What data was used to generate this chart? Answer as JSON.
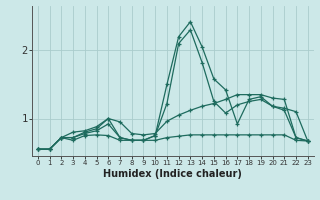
{
  "xlabel": "Humidex (Indice chaleur)",
  "x_labels": [
    "0",
    "1",
    "2",
    "3",
    "4",
    "5",
    "6",
    "7",
    "8",
    "9",
    "10",
    "11",
    "12",
    "13",
    "14",
    "15",
    "16",
    "17",
    "18",
    "19",
    "20",
    "21",
    "22",
    "23"
  ],
  "yticks": [
    1,
    2
  ],
  "ylim": [
    0.45,
    2.65
  ],
  "xlim": [
    -0.5,
    23.5
  ],
  "bg_color": "#cce8e8",
  "grid_color": "#aacccc",
  "line_color": "#1e6b5e",
  "series": [
    [
      0.55,
      0.55,
      0.72,
      0.72,
      0.8,
      0.85,
      1.0,
      0.72,
      0.68,
      0.68,
      0.75,
      1.5,
      2.2,
      2.42,
      2.05,
      1.58,
      1.42,
      0.92,
      1.28,
      1.32,
      1.18,
      1.15,
      1.1,
      0.67
    ],
    [
      0.55,
      0.55,
      0.72,
      0.72,
      0.78,
      0.82,
      0.92,
      0.72,
      0.68,
      0.68,
      0.75,
      1.22,
      2.1,
      2.3,
      1.82,
      1.25,
      1.08,
      1.2,
      1.25,
      1.28,
      1.18,
      1.12,
      0.72,
      0.67
    ],
    [
      0.55,
      0.55,
      0.72,
      0.8,
      0.82,
      0.88,
      1.0,
      0.95,
      0.78,
      0.76,
      0.78,
      0.96,
      1.05,
      1.12,
      1.18,
      1.22,
      1.28,
      1.35,
      1.35,
      1.35,
      1.3,
      1.28,
      0.72,
      0.67
    ],
    [
      0.55,
      0.55,
      0.72,
      0.68,
      0.75,
      0.76,
      0.75,
      0.68,
      0.68,
      0.68,
      0.68,
      0.72,
      0.74,
      0.76,
      0.76,
      0.76,
      0.76,
      0.76,
      0.76,
      0.76,
      0.76,
      0.76,
      0.68,
      0.67
    ]
  ]
}
